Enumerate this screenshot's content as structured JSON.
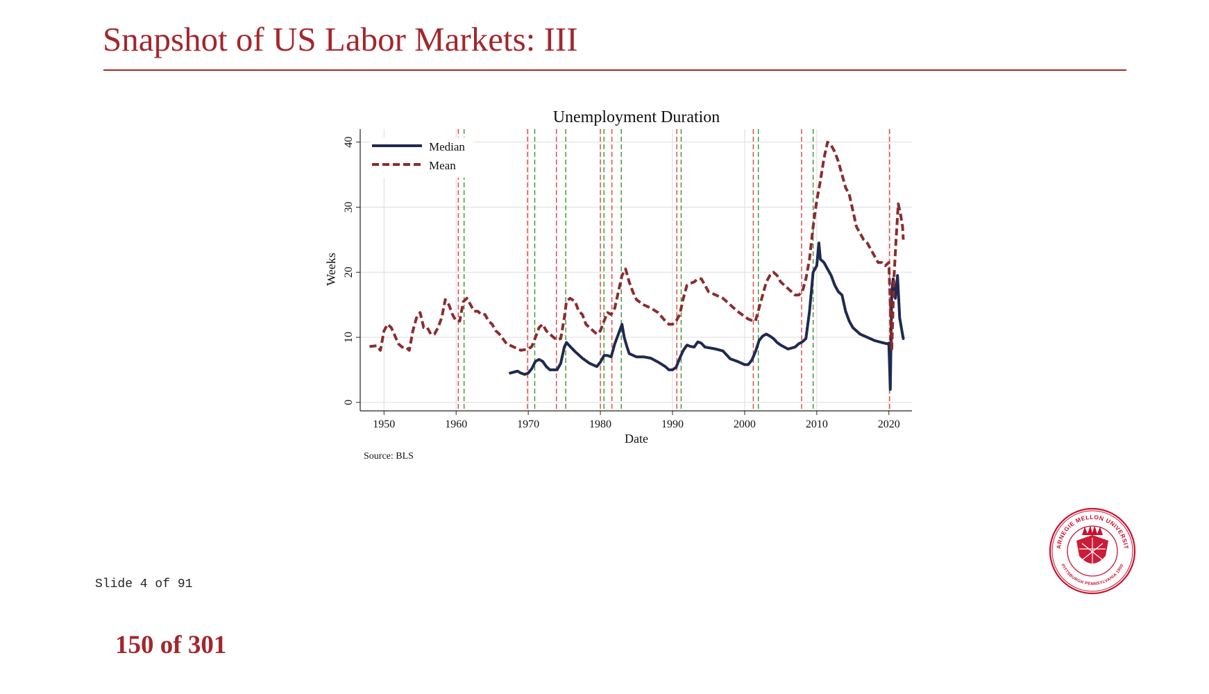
{
  "slide": {
    "title": "Snapshot of US Labor Markets: III",
    "slide_counter": "Slide 4 of 91",
    "page_counter": "150 of 301"
  },
  "logo": {
    "name": "carnegie-mellon-seal",
    "text_top": "CARNEGIE MELLON UNIVERSITY",
    "text_bottom": "PITTSBURGH PENNSYLVANIA 1900",
    "color": "#c8102e"
  },
  "chart_data": {
    "type": "line",
    "title": "Unemployment Duration",
    "xlabel": "Date",
    "ylabel": "Weeks",
    "source": "Source: BLS",
    "xlim": [
      1946.7,
      2023.2
    ],
    "ylim": [
      -1.3,
      42
    ],
    "xticks": [
      1950,
      1960,
      1970,
      1980,
      1990,
      2000,
      2010,
      2020
    ],
    "yticks": [
      0,
      10,
      20,
      30,
      40
    ],
    "grid": true,
    "legend_position": "top-left",
    "series": [
      {
        "name": "Median",
        "color": "#1f2a4f",
        "style": "solid",
        "x": [
          1967.5,
          1968.5,
          1969.0,
          1969.5,
          1970.0,
          1970.5,
          1971.0,
          1971.5,
          1972.0,
          1972.5,
          1973.0,
          1973.5,
          1974.0,
          1974.5,
          1975.0,
          1975.3,
          1975.8,
          1976.5,
          1977.5,
          1978.5,
          1979.5,
          1980.0,
          1980.5,
          1981.0,
          1981.5,
          1982.0,
          1982.5,
          1983.0,
          1983.3,
          1983.7,
          1984.0,
          1985.0,
          1986.0,
          1987.0,
          1988.0,
          1989.0,
          1989.5,
          1990.0,
          1990.5,
          1991.0,
          1991.5,
          1992.0,
          1992.5,
          1993.0,
          1993.5,
          1994.0,
          1994.5,
          1995.0,
          1996.0,
          1997.0,
          1998.0,
          1999.0,
          2000.0,
          2000.5,
          2001.0,
          2001.5,
          2002.0,
          2002.5,
          2003.0,
          2003.5,
          2004.0,
          2004.5,
          2005.0,
          2006.0,
          2007.0,
          2007.5,
          2008.0,
          2008.5,
          2009.0,
          2009.5,
          2010.0,
          2010.3,
          2010.5,
          2011.0,
          2011.5,
          2012.0,
          2012.5,
          2013.0,
          2013.5,
          2014.0,
          2014.5,
          2015.0,
          2016.0,
          2017.0,
          2018.0,
          2019.0,
          2019.8,
          2020.0,
          2020.2,
          2020.4,
          2020.6,
          2020.9,
          2021.2,
          2021.5,
          2021.8,
          2022.0
        ],
        "y": [
          4.5,
          4.8,
          4.5,
          4.3,
          4.5,
          5.2,
          6.3,
          6.6,
          6.3,
          5.5,
          5.0,
          5.0,
          5.0,
          6.0,
          8.5,
          9.2,
          8.6,
          7.8,
          6.8,
          6.0,
          5.5,
          6.2,
          7.2,
          7.2,
          7.0,
          9.0,
          10.5,
          12.0,
          10.0,
          8.5,
          7.5,
          7.0,
          7.0,
          6.8,
          6.2,
          5.5,
          5.0,
          5.0,
          5.4,
          6.8,
          8.0,
          8.8,
          8.6,
          8.5,
          9.3,
          9.1,
          8.5,
          8.4,
          8.2,
          7.9,
          6.7,
          6.3,
          5.8,
          5.8,
          6.5,
          7.8,
          9.5,
          10.2,
          10.5,
          10.2,
          9.8,
          9.2,
          8.8,
          8.2,
          8.5,
          9.0,
          9.3,
          9.8,
          14.0,
          20.0,
          21.0,
          24.5,
          22.0,
          21.5,
          20.5,
          19.5,
          18.0,
          17.0,
          16.5,
          14.0,
          12.5,
          11.5,
          10.5,
          10.0,
          9.5,
          9.2,
          9.0,
          9.1,
          2.0,
          17.0,
          19.0,
          16.0,
          19.5,
          13.0,
          11.0,
          9.8
        ]
      },
      {
        "name": "Mean",
        "color": "#8b2c2e",
        "style": "dashed",
        "x": [
          1948.0,
          1949.0,
          1949.5,
          1950.0,
          1950.5,
          1951.0,
          1952.0,
          1952.5,
          1953.0,
          1953.5,
          1954.0,
          1954.5,
          1955.0,
          1955.5,
          1956.0,
          1956.5,
          1957.0,
          1957.5,
          1958.0,
          1958.5,
          1959.0,
          1959.5,
          1960.0,
          1960.5,
          1961.0,
          1961.5,
          1962.0,
          1962.5,
          1963.0,
          1963.5,
          1964.0,
          1964.5,
          1965.0,
          1965.5,
          1966.0,
          1967.0,
          1968.0,
          1969.0,
          1970.0,
          1970.5,
          1971.0,
          1971.5,
          1972.0,
          1972.5,
          1973.0,
          1973.5,
          1974.0,
          1974.5,
          1975.0,
          1975.3,
          1975.8,
          1976.5,
          1977.0,
          1977.5,
          1978.0,
          1978.5,
          1979.0,
          1979.5,
          1980.0,
          1980.5,
          1981.0,
          1981.5,
          1982.0,
          1982.5,
          1983.0,
          1983.5,
          1984.0,
          1984.5,
          1985.0,
          1986.0,
          1987.0,
          1988.0,
          1989.0,
          1989.5,
          1990.0,
          1990.5,
          1991.0,
          1991.5,
          1992.0,
          1992.5,
          1993.0,
          1993.5,
          1994.0,
          1994.5,
          1995.0,
          1996.0,
          1997.0,
          1998.0,
          1999.0,
          2000.0,
          2000.5,
          2001.0,
          2001.5,
          2002.0,
          2002.5,
          2003.0,
          2003.5,
          2004.0,
          2004.5,
          2005.0,
          2006.0,
          2007.0,
          2007.5,
          2008.0,
          2008.5,
          2009.0,
          2009.5,
          2010.0,
          2010.5,
          2011.0,
          2011.5,
          2012.0,
          2012.5,
          2013.0,
          2013.5,
          2014.0,
          2014.5,
          2015.0,
          2015.5,
          2016.0,
          2016.5,
          2017.0,
          2017.5,
          2018.0,
          2018.5,
          2019.0,
          2019.5,
          2020.0,
          2020.2,
          2020.4,
          2020.7,
          2021.0,
          2021.3,
          2021.6,
          2021.9,
          2022.0
        ],
        "y": [
          8.6,
          8.7,
          8.0,
          11.0,
          12.0,
          11.5,
          9.0,
          8.5,
          8.5,
          8.0,
          11.0,
          13.0,
          13.8,
          11.5,
          11.5,
          10.5,
          10.5,
          11.5,
          13.0,
          15.8,
          15.0,
          13.5,
          12.5,
          12.5,
          15.5,
          16.0,
          15.0,
          14.0,
          14.0,
          13.5,
          13.5,
          12.5,
          12.0,
          11.0,
          10.5,
          9.0,
          8.5,
          8.0,
          8.2,
          8.6,
          10.0,
          11.5,
          12.0,
          11.0,
          10.5,
          10.0,
          9.6,
          9.8,
          13.0,
          15.5,
          16.0,
          15.5,
          14.0,
          13.5,
          12.0,
          11.5,
          11.0,
          10.5,
          11.0,
          12.5,
          13.8,
          13.5,
          14.5,
          17.0,
          19.5,
          20.5,
          18.5,
          17.0,
          15.8,
          15.0,
          14.5,
          13.8,
          12.5,
          12.0,
          12.0,
          12.5,
          13.5,
          16.0,
          18.0,
          18.3,
          18.5,
          19.0,
          19.0,
          18.0,
          17.0,
          16.5,
          16.0,
          15.0,
          14.0,
          13.2,
          12.8,
          12.6,
          12.5,
          14.5,
          16.5,
          18.5,
          19.5,
          20.0,
          19.5,
          18.5,
          17.5,
          16.5,
          16.5,
          17.0,
          19.0,
          22.0,
          27.0,
          31.0,
          34.0,
          37.5,
          40.0,
          39.5,
          38.5,
          37.0,
          35.0,
          33.0,
          32.0,
          29.5,
          27.0,
          26.0,
          25.0,
          24.5,
          23.5,
          22.5,
          21.5,
          21.5,
          21.0,
          21.5,
          15.0,
          8.0,
          19.0,
          25.0,
          30.5,
          29.0,
          27.0,
          25.0
        ]
      }
    ],
    "recession_lines": {
      "peaks": [
        1960.3,
        1969.9,
        1973.9,
        1980.0,
        1981.6,
        1990.6,
        2001.2,
        2007.9,
        2020.1
      ],
      "troughs": [
        1961.1,
        1970.9,
        1975.2,
        1980.5,
        1982.9,
        1991.2,
        2001.9,
        2009.5
      ],
      "peak_color": "#e8403a",
      "trough_color": "#3f8f2e"
    }
  }
}
